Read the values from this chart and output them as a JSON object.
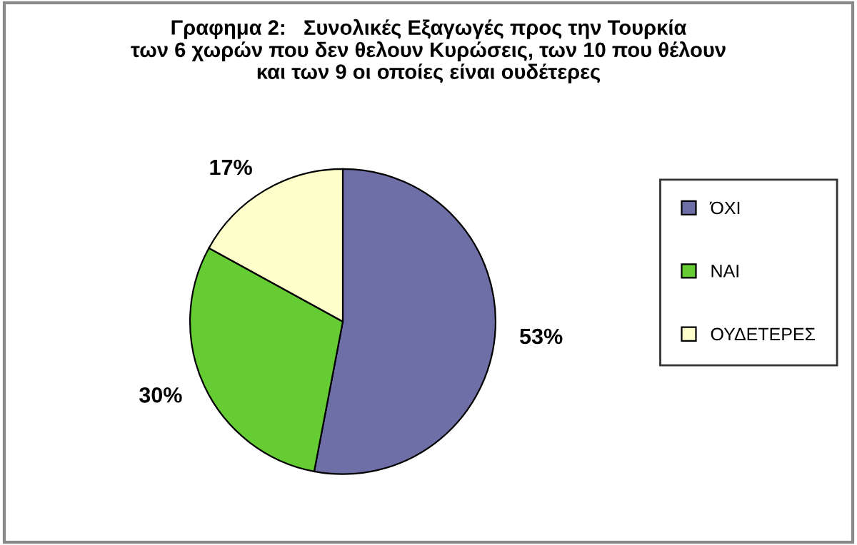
{
  "chart_data": {
    "type": "pie",
    "title": "Γραφημα 2:   Συνολικές Εξαγωγές προς την Τουρκία\nτων 6 χωρών που δεν θελουν Κυρώσεις, των 10 που θέλουν\nκαι των 9 οι οποίες είναι ουδέτερες",
    "categories": [
      "ΌΧΙ",
      "ΝΑΙ",
      "ΟΥΔΕΤΕΡΕΣ"
    ],
    "values": [
      53,
      30,
      17
    ],
    "colors": [
      "#6f6fa8",
      "#66cc33",
      "#ffffcc"
    ],
    "value_labels": [
      "53%",
      "30%",
      "17%"
    ],
    "legend": "right"
  }
}
